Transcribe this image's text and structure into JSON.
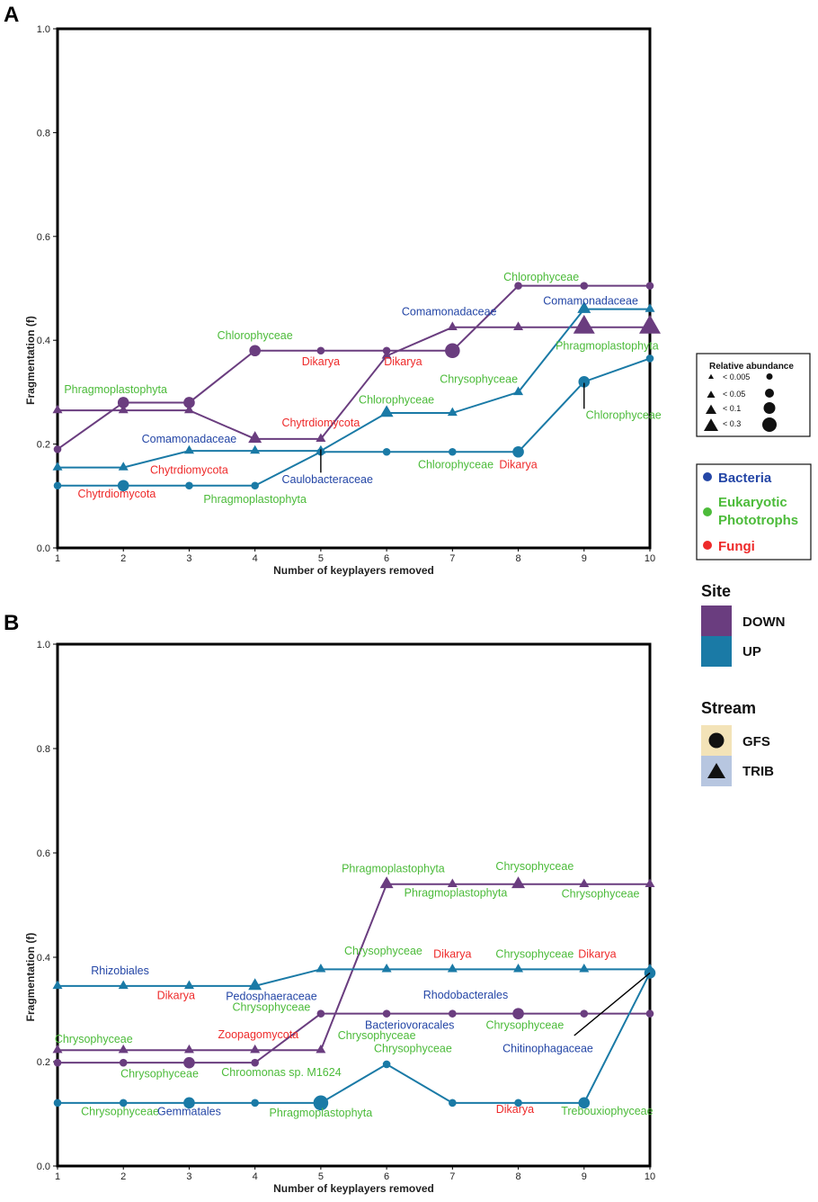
{
  "colors": {
    "down": "#6a3d7f",
    "up": "#1a7aa6",
    "bacteria": "#2446a6",
    "eukaryotic": "#4cbb3a",
    "fungi": "#ee2a2a"
  },
  "chart_data": [
    {
      "panel": "A",
      "type": "line",
      "xlabel": "Number of keyplayers removed",
      "ylabel": "Fragmentation (f)",
      "x": [
        1,
        2,
        3,
        4,
        5,
        6,
        7,
        8,
        9,
        10
      ],
      "ylim": [
        0.0,
        1.0
      ],
      "yticks": [
        "0.0",
        "0.2",
        "0.4",
        "0.6",
        "0.8",
        "1.0"
      ],
      "xticks": [
        "1",
        "2",
        "3",
        "4",
        "5",
        "6",
        "7",
        "8",
        "9",
        "10"
      ],
      "series": [
        {
          "name": "DOWN GFS",
          "site": "down",
          "shape": "circle",
          "values": [
            0.19,
            0.28,
            0.28,
            0.38,
            0.38,
            0.38,
            0.38,
            0.505,
            0.505,
            0.505
          ],
          "sizes": [
            1,
            2,
            2,
            2,
            1,
            1,
            3,
            1,
            1,
            1
          ]
        },
        {
          "name": "DOWN TRIB",
          "site": "down",
          "shape": "triangle",
          "values": [
            0.265,
            0.265,
            0.265,
            0.21,
            0.21,
            0.37,
            0.425,
            0.425,
            0.425,
            0.425
          ],
          "sizes": [
            1,
            1,
            1,
            2,
            1,
            1,
            1,
            1,
            4,
            4
          ]
        },
        {
          "name": "UP TRIB",
          "site": "up",
          "shape": "triangle",
          "values": [
            0.155,
            0.155,
            0.187,
            0.187,
            0.187,
            0.26,
            0.26,
            0.3,
            0.46,
            0.46
          ],
          "sizes": [
            1,
            1,
            1,
            1,
            1,
            2,
            1,
            1,
            2,
            1
          ]
        },
        {
          "name": "UP GFS",
          "site": "up",
          "shape": "circle",
          "values": [
            0.12,
            0.12,
            0.12,
            0.12,
            0.185,
            0.185,
            0.185,
            0.185,
            0.32,
            0.365
          ],
          "sizes": [
            1,
            2,
            1,
            1,
            1,
            1,
            1,
            2,
            2,
            1
          ]
        }
      ],
      "annotations": [
        {
          "text": "Phragmoplastophyta",
          "group": "eukaryotic",
          "x": 1.1,
          "y": 0.298,
          "anchor": "start"
        },
        {
          "text": "Chlorophyceae",
          "group": "eukaryotic",
          "x": 4.0,
          "y": 0.402,
          "anchor": "middle"
        },
        {
          "text": "Comamonadaceae",
          "group": "bacteria",
          "x": 3.0,
          "y": 0.203,
          "anchor": "middle"
        },
        {
          "text": "Chytrdiomycota",
          "group": "fungi",
          "x": 5.0,
          "y": 0.234,
          "anchor": "middle"
        },
        {
          "text": "Chytrdiomycota",
          "group": "fungi",
          "x": 3.0,
          "y": 0.143,
          "anchor": "middle"
        },
        {
          "text": "Chytrdiomycota",
          "group": "fungi",
          "x": 1.9,
          "y": 0.097,
          "anchor": "middle"
        },
        {
          "text": "Phragmoplastophyta",
          "group": "eukaryotic",
          "x": 4.0,
          "y": 0.087,
          "anchor": "middle"
        },
        {
          "text": "Caulobacteraceae",
          "group": "bacteria",
          "x": 5.1,
          "y": 0.125,
          "anchor": "middle"
        },
        {
          "text": "Dikarya",
          "group": "fungi",
          "x": 5.0,
          "y": 0.352,
          "anchor": "middle"
        },
        {
          "text": "Dikarya",
          "group": "fungi",
          "x": 6.25,
          "y": 0.352,
          "anchor": "middle"
        },
        {
          "text": "Comamonadaceae",
          "group": "bacteria",
          "x": 6.95,
          "y": 0.448,
          "anchor": "middle"
        },
        {
          "text": "Chlorophyceae",
          "group": "eukaryotic",
          "x": 6.15,
          "y": 0.278,
          "anchor": "middle"
        },
        {
          "text": "Chrysophyceae",
          "group": "eukaryotic",
          "x": 7.4,
          "y": 0.318,
          "anchor": "middle"
        },
        {
          "text": "Chlorophyceae",
          "group": "eukaryotic",
          "x": 7.05,
          "y": 0.153,
          "anchor": "middle"
        },
        {
          "text": "Dikarya",
          "group": "fungi",
          "x": 8.0,
          "y": 0.153,
          "anchor": "middle"
        },
        {
          "text": "Chlorophyceae",
          "group": "eukaryotic",
          "x": 8.35,
          "y": 0.515,
          "anchor": "middle"
        },
        {
          "text": "Comamonadaceae",
          "group": "bacteria",
          "x": 9.1,
          "y": 0.469,
          "anchor": "middle"
        },
        {
          "text": "Phragmoplastophyta",
          "group": "eukaryotic",
          "x": 9.35,
          "y": 0.382,
          "anchor": "middle"
        },
        {
          "text": "Chlorophyceae",
          "group": "eukaryotic",
          "x": 9.6,
          "y": 0.249,
          "anchor": "middle"
        }
      ],
      "pointers": [
        {
          "x1": 5.0,
          "y1": 0.145,
          "x2": 5.0,
          "y2": 0.19
        },
        {
          "x1": 9.0,
          "y1": 0.268,
          "x2": 9.0,
          "y2": 0.318
        }
      ]
    },
    {
      "panel": "B",
      "type": "line",
      "xlabel": "Number of keyplayers removed",
      "ylabel": "Fragmentation (f)",
      "x": [
        1,
        2,
        3,
        4,
        5,
        6,
        7,
        8,
        9,
        10
      ],
      "ylim": [
        0.0,
        1.0
      ],
      "yticks": [
        "0.0",
        "0.2",
        "0.4",
        "0.6",
        "0.8",
        "1.0"
      ],
      "xticks": [
        "1",
        "2",
        "3",
        "4",
        "5",
        "6",
        "7",
        "8",
        "9",
        "10"
      ],
      "series": [
        {
          "name": "DOWN TRIB",
          "site": "down",
          "shape": "triangle",
          "values": [
            0.222,
            0.222,
            0.222,
            0.222,
            0.222,
            0.54,
            0.54,
            0.54,
            0.54,
            0.54
          ],
          "sizes": [
            1,
            1,
            1,
            1,
            1,
            2,
            1,
            2,
            1,
            1
          ]
        },
        {
          "name": "UP TRIB",
          "site": "up",
          "shape": "triangle",
          "values": [
            0.345,
            0.345,
            0.345,
            0.345,
            0.377,
            0.377,
            0.377,
            0.377,
            0.377,
            0.377
          ],
          "sizes": [
            1,
            1,
            1,
            2,
            1,
            1,
            1,
            1,
            1,
            1
          ]
        },
        {
          "name": "DOWN GFS",
          "site": "down",
          "shape": "circle",
          "values": [
            0.198,
            0.198,
            0.198,
            0.198,
            0.292,
            0.292,
            0.292,
            0.292,
            0.292,
            0.292
          ],
          "sizes": [
            1,
            1,
            2,
            1,
            1,
            1,
            1,
            2,
            1,
            1
          ]
        },
        {
          "name": "UP GFS",
          "site": "up",
          "shape": "circle",
          "values": [
            0.121,
            0.121,
            0.121,
            0.121,
            0.121,
            0.195,
            0.121,
            0.121,
            0.121,
            0.37
          ],
          "sizes": [
            1,
            1,
            2,
            1,
            3,
            1,
            1,
            1,
            2,
            2
          ]
        }
      ],
      "annotations": [
        {
          "text": "Rhizobiales",
          "group": "bacteria",
          "x": 1.95,
          "y": 0.367,
          "anchor": "middle"
        },
        {
          "text": "Dikarya",
          "group": "fungi",
          "x": 2.8,
          "y": 0.32,
          "anchor": "middle"
        },
        {
          "text": "Pedosphaeraceae",
          "group": "bacteria",
          "x": 4.25,
          "y": 0.318,
          "anchor": "middle"
        },
        {
          "text": "Chrysophyceae",
          "group": "eukaryotic",
          "x": 4.25,
          "y": 0.297,
          "anchor": "middle"
        },
        {
          "text": "Zoopagomycota",
          "group": "fungi",
          "x": 4.05,
          "y": 0.245,
          "anchor": "middle"
        },
        {
          "text": "Chrysophyceae",
          "group": "eukaryotic",
          "x": 1.55,
          "y": 0.236,
          "anchor": "middle"
        },
        {
          "text": "Chrysophyceae",
          "group": "eukaryotic",
          "x": 2.55,
          "y": 0.17,
          "anchor": "middle"
        },
        {
          "text": "Chroomonas sp. M1624",
          "group": "eukaryotic",
          "x": 4.4,
          "y": 0.172,
          "anchor": "middle"
        },
        {
          "text": "Chrysophyceae",
          "group": "eukaryotic",
          "x": 5.95,
          "y": 0.405,
          "anchor": "middle"
        },
        {
          "text": "Phragmoplastophyta",
          "group": "eukaryotic",
          "x": 6.1,
          "y": 0.563,
          "anchor": "middle"
        },
        {
          "text": "Phragmoplastophyta",
          "group": "eukaryotic",
          "x": 7.05,
          "y": 0.516,
          "anchor": "middle"
        },
        {
          "text": "Chrysophyceae",
          "group": "eukaryotic",
          "x": 8.25,
          "y": 0.567,
          "anchor": "middle"
        },
        {
          "text": "Chrysophyceae",
          "group": "eukaryotic",
          "x": 9.25,
          "y": 0.515,
          "anchor": "middle"
        },
        {
          "text": "Dikarya",
          "group": "fungi",
          "x": 7.0,
          "y": 0.399,
          "anchor": "middle"
        },
        {
          "text": "Chrysophyceae",
          "group": "eukaryotic",
          "x": 8.25,
          "y": 0.399,
          "anchor": "middle"
        },
        {
          "text": "Dikarya",
          "group": "fungi",
          "x": 9.2,
          "y": 0.399,
          "anchor": "middle"
        },
        {
          "text": "Rhodobacterales",
          "group": "bacteria",
          "x": 7.2,
          "y": 0.321,
          "anchor": "middle"
        },
        {
          "text": "Bacteriovoracales",
          "group": "bacteria",
          "x": 6.35,
          "y": 0.263,
          "anchor": "middle"
        },
        {
          "text": "Chrysophyceae",
          "group": "eukaryotic",
          "x": 5.85,
          "y": 0.243,
          "anchor": "middle"
        },
        {
          "text": "Chrysophyceae",
          "group": "eukaryotic",
          "x": 8.1,
          "y": 0.263,
          "anchor": "middle"
        },
        {
          "text": "Chrysophyceae",
          "group": "eukaryotic",
          "x": 6.4,
          "y": 0.218,
          "anchor": "middle"
        },
        {
          "text": "Chitinophagaceae",
          "group": "bacteria",
          "x": 8.45,
          "y": 0.218,
          "anchor": "middle"
        },
        {
          "text": "Chrysophyceae",
          "group": "eukaryotic",
          "x": 1.95,
          "y": 0.097,
          "anchor": "middle"
        },
        {
          "text": "Gemmatales",
          "group": "bacteria",
          "x": 3.0,
          "y": 0.097,
          "anchor": "middle"
        },
        {
          "text": "Phragmoplastophyta",
          "group": "eukaryotic",
          "x": 5.0,
          "y": 0.095,
          "anchor": "middle"
        },
        {
          "text": "Dikarya",
          "group": "fungi",
          "x": 7.95,
          "y": 0.102,
          "anchor": "middle"
        },
        {
          "text": "Trebouxiophyceae",
          "group": "eukaryotic",
          "x": 9.35,
          "y": 0.098,
          "anchor": "middle"
        }
      ],
      "pointers": [
        {
          "x1": 8.85,
          "y1": 0.25,
          "x2": 10.0,
          "y2": 0.37
        }
      ]
    }
  ],
  "legend": {
    "abundance": {
      "title": "Relative abundance",
      "levels": [
        "< 0.005",
        "< 0.05",
        "< 0.1",
        "< 0.3"
      ]
    },
    "taxa": [
      {
        "label": "Bacteria",
        "group": "bacteria"
      },
      {
        "label": "Eukaryotic",
        "group": "eukaryotic"
      },
      {
        "label": "Phototrophs",
        "group": "eukaryotic"
      },
      {
        "label": "Fungi",
        "group": "fungi"
      }
    ],
    "site": {
      "title": "Site",
      "items": [
        {
          "label": "DOWN",
          "key": "down"
        },
        {
          "label": "UP",
          "key": "up"
        }
      ]
    },
    "stream": {
      "title": "Stream",
      "items": [
        {
          "label": "GFS",
          "shape": "circle",
          "bg": "#f3e3b8"
        },
        {
          "label": "TRIB",
          "shape": "triangle",
          "bg": "#b7c6e0"
        }
      ]
    }
  }
}
